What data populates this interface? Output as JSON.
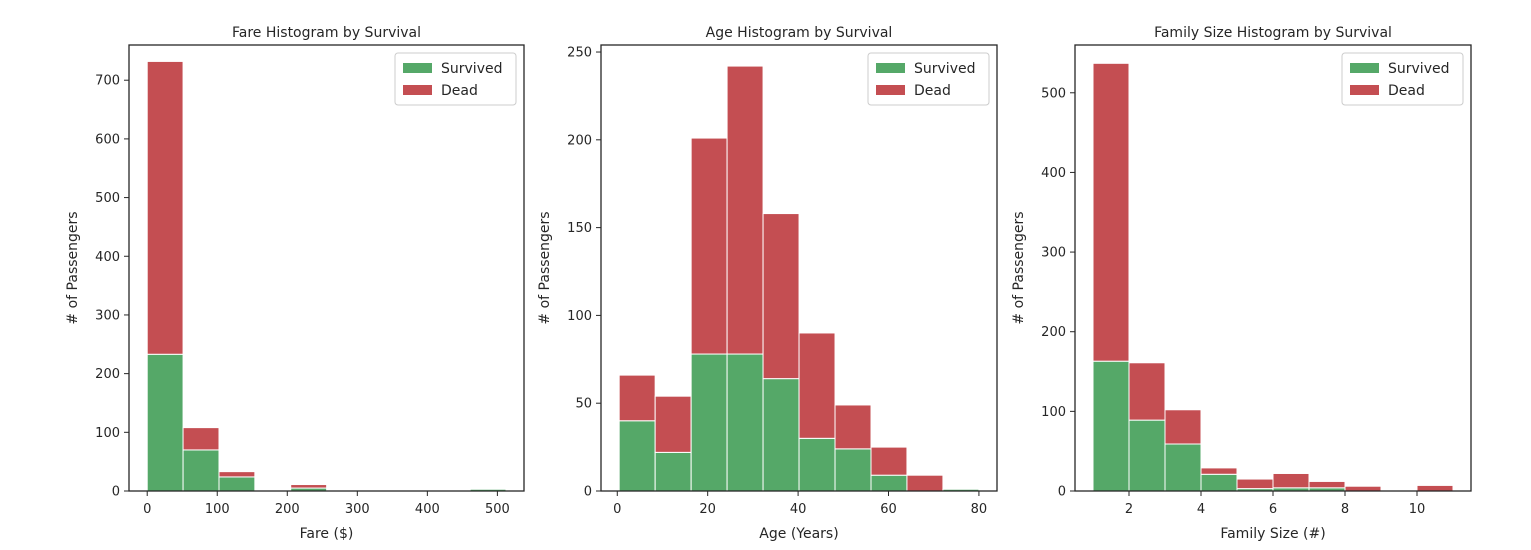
{
  "colors": {
    "survived": "#55a868",
    "dead": "#c44e52"
  },
  "chart_data": [
    {
      "type": "bar",
      "stacked": true,
      "title": "Fare Histogram by Survival",
      "xlabel": "Fare ($)",
      "ylabel": "# of Passengers",
      "xlim": [
        -26,
        538
      ],
      "ylim": [
        0,
        760
      ],
      "xticks": [
        0,
        100,
        200,
        300,
        400,
        500
      ],
      "yticks": [
        0,
        100,
        200,
        300,
        400,
        500,
        600,
        700
      ],
      "xticklabels": [
        "0",
        "100",
        "200",
        "300",
        "400",
        "500"
      ],
      "yticklabels": [
        "0",
        "100",
        "200",
        "300",
        "400",
        "500",
        "600",
        "700"
      ],
      "bin_edges": [
        0,
        51.2,
        102.5,
        153.7,
        204.9,
        256.2,
        307.4,
        358.6,
        409.8,
        461.1,
        512.3
      ],
      "legend": {
        "placement": "upper right",
        "entries": [
          "Survived",
          "Dead"
        ]
      },
      "series": [
        {
          "name": "Survived",
          "values": [
            233,
            70,
            24,
            0,
            5,
            0,
            0,
            0,
            0,
            3
          ]
        },
        {
          "name": "Dead",
          "values": [
            499,
            38,
            9,
            0,
            6,
            0,
            0,
            0,
            0,
            0
          ]
        }
      ]
    },
    {
      "type": "bar",
      "stacked": true,
      "title": "Age Histogram by Survival",
      "xlabel": "Age (Years)",
      "ylabel": "# of Passengers",
      "xlim": [
        -3.6,
        84.0
      ],
      "ylim": [
        0,
        254
      ],
      "xticks": [
        0,
        20,
        40,
        60,
        80
      ],
      "yticks": [
        0,
        50,
        100,
        150,
        200,
        250
      ],
      "xticklabels": [
        "0",
        "20",
        "40",
        "60",
        "80"
      ],
      "yticklabels": [
        "0",
        "50",
        "100",
        "150",
        "200",
        "250"
      ],
      "bin_edges": [
        0.42,
        8.38,
        16.34,
        24.29,
        32.25,
        40.21,
        48.17,
        56.13,
        64.08,
        72.04,
        80.0
      ],
      "legend": {
        "placement": "upper right",
        "entries": [
          "Survived",
          "Dead"
        ]
      },
      "series": [
        {
          "name": "Survived",
          "values": [
            40,
            22,
            78,
            78,
            64,
            30,
            24,
            9,
            0,
            1
          ]
        },
        {
          "name": "Dead",
          "values": [
            26,
            32,
            123,
            164,
            94,
            60,
            25,
            16,
            9,
            0
          ]
        }
      ]
    },
    {
      "type": "bar",
      "stacked": true,
      "title": "Family Size Histogram by Survival",
      "xlabel": "Family Size (#)",
      "ylabel": "# of Passengers",
      "xlim": [
        0.5,
        11.5
      ],
      "ylim": [
        0,
        560
      ],
      "xticks": [
        2,
        4,
        6,
        8,
        10
      ],
      "yticks": [
        0,
        100,
        200,
        300,
        400,
        500
      ],
      "xticklabels": [
        "2",
        "4",
        "6",
        "8",
        "10"
      ],
      "yticklabels": [
        "0",
        "100",
        "200",
        "300",
        "400",
        "500"
      ],
      "bin_edges": [
        1,
        2,
        3,
        4,
        5,
        6,
        7,
        8,
        9,
        10,
        11
      ],
      "legend": {
        "placement": "upper right",
        "entries": [
          "Survived",
          "Dead"
        ]
      },
      "series": [
        {
          "name": "Survived",
          "values": [
            163,
            89,
            59,
            21,
            3,
            4,
            4,
            0,
            0,
            0
          ]
        },
        {
          "name": "Dead",
          "values": [
            374,
            72,
            43,
            8,
            12,
            18,
            8,
            6,
            0,
            7
          ]
        }
      ]
    }
  ]
}
